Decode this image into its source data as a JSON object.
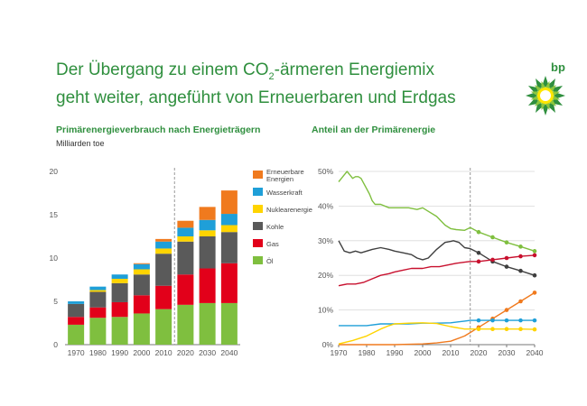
{
  "headline": {
    "line1_pre": "Der Übergang zu einem CO",
    "line1_sub": "2",
    "line1_post": "-ärmeren Energiemix",
    "line2": "geht weiter, angeführt von Erneuerbaren und Erdgas"
  },
  "logo": {
    "text": "bp"
  },
  "colors": {
    "accent": "#2f8f3e",
    "oil": "#7fbf3f",
    "gas": "#e2001a",
    "coal": "#5a5a5a",
    "nuclear": "#ffd400",
    "hydro": "#1f9fd8",
    "renew": "#f07a1e"
  },
  "chart_data": [
    {
      "type": "bar",
      "stacked": true,
      "title": "Primärenergieverbrauch nach Energieträgern",
      "ylabel": "Milliarden toe",
      "categories": [
        "1970",
        "1980",
        "1990",
        "2000",
        "2010",
        "2020",
        "2030",
        "2040"
      ],
      "ylim": [
        0,
        20
      ],
      "yticks": [
        0,
        5,
        10,
        15,
        20
      ],
      "projection_from": "2020",
      "series": [
        {
          "name": "Öl",
          "color": "#7fbf3f",
          "values": [
            2.3,
            3.1,
            3.2,
            3.6,
            4.1,
            4.6,
            4.8,
            4.8
          ]
        },
        {
          "name": "Gas",
          "color": "#e2001a",
          "values": [
            0.9,
            1.2,
            1.7,
            2.1,
            2.7,
            3.5,
            4.0,
            4.6
          ]
        },
        {
          "name": "Kohle",
          "color": "#5a5a5a",
          "values": [
            1.5,
            1.8,
            2.2,
            2.4,
            3.7,
            3.8,
            3.7,
            3.6
          ]
        },
        {
          "name": "Nuklearenergie",
          "color": "#ffd400",
          "values": [
            0.0,
            0.2,
            0.5,
            0.6,
            0.6,
            0.6,
            0.7,
            0.8
          ]
        },
        {
          "name": "Wasserkraft",
          "color": "#1f9fd8",
          "values": [
            0.3,
            0.4,
            0.5,
            0.6,
            0.8,
            1.0,
            1.2,
            1.3
          ]
        },
        {
          "name": "Erneuerbare Energien",
          "color": "#f07a1e",
          "values": [
            0.0,
            0.0,
            0.0,
            0.1,
            0.3,
            0.8,
            1.5,
            2.7
          ]
        }
      ],
      "legend_order": [
        "Erneuerbare Energien",
        "Wasserkraft",
        "Nuklearenergie",
        "Kohle",
        "Gas",
        "Öl"
      ],
      "legend_placement": "right"
    },
    {
      "type": "line",
      "title": "Anteil an der Primärenergie",
      "xlim": [
        1970,
        2040
      ],
      "xticks": [
        1970,
        1980,
        1990,
        2000,
        2010,
        2020,
        2030,
        2040
      ],
      "ylim": [
        0,
        50
      ],
      "yticks": [
        0,
        10,
        20,
        30,
        40,
        50
      ],
      "yunit": "%",
      "projection_from": 2017,
      "marker_years": [
        2020,
        2025,
        2030,
        2035,
        2040
      ],
      "series": [
        {
          "name": "Öl",
          "color": "#7fbf3f",
          "x": [
            1970,
            1971,
            1972,
            1973,
            1974,
            1975,
            1976,
            1977,
            1978,
            1979,
            1980,
            1981,
            1982,
            1983,
            1985,
            1988,
            1990,
            1995,
            1998,
            2000,
            2002,
            2005,
            2008,
            2010,
            2012,
            2015,
            2017,
            2020,
            2025,
            2030,
            2035,
            2040
          ],
          "values": [
            47,
            48,
            49,
            50,
            49,
            48,
            48.5,
            48.5,
            48,
            46.5,
            45,
            43.5,
            41.5,
            40.5,
            40.5,
            39.5,
            39.5,
            39.5,
            39,
            39.5,
            38.5,
            37,
            34.5,
            33.5,
            33.2,
            33,
            33.8,
            32.5,
            31,
            29.5,
            28.3,
            27
          ]
        },
        {
          "name": "Kohle",
          "color": "#3f3f3f",
          "x": [
            1970,
            1972,
            1974,
            1976,
            1978,
            1980,
            1982,
            1985,
            1988,
            1990,
            1993,
            1996,
            1998,
            2000,
            2002,
            2005,
            2008,
            2010,
            2011,
            2013,
            2015,
            2017,
            2020,
            2025,
            2030,
            2035,
            2040
          ],
          "values": [
            30,
            27,
            26.5,
            27,
            26.5,
            27,
            27.5,
            28,
            27.5,
            27,
            26.5,
            26,
            25,
            24.5,
            25,
            27.5,
            29.5,
            29.8,
            30,
            29.5,
            28,
            27.7,
            26.5,
            24,
            22.5,
            21.3,
            20
          ]
        },
        {
          "name": "Gas",
          "color": "#c8102e",
          "x": [
            1970,
            1973,
            1976,
            1979,
            1982,
            1985,
            1988,
            1990,
            1993,
            1996,
            2000,
            2003,
            2006,
            2009,
            2012,
            2015,
            2017,
            2020,
            2025,
            2030,
            2035,
            2040
          ],
          "values": [
            17,
            17.5,
            17.5,
            18,
            19,
            20,
            20.5,
            21,
            21.5,
            22,
            22,
            22.5,
            22.5,
            23,
            23.5,
            23.8,
            24,
            24,
            24.5,
            25,
            25.5,
            25.8
          ]
        },
        {
          "name": "Erneuerbare Energien",
          "color": "#f07a1e",
          "x": [
            1970,
            1980,
            1990,
            2000,
            2005,
            2010,
            2015,
            2017,
            2020,
            2025,
            2030,
            2035,
            2040
          ],
          "values": [
            0,
            0,
            0,
            0.2,
            0.5,
            1,
            2.5,
            3.5,
            5,
            7.5,
            10,
            12.5,
            15
          ]
        },
        {
          "name": "Wasserkraft",
          "color": "#1f9fd8",
          "x": [
            1970,
            1975,
            1980,
            1985,
            1990,
            1995,
            2000,
            2005,
            2010,
            2015,
            2017,
            2020,
            2025,
            2030,
            2035,
            2040
          ],
          "values": [
            5.5,
            5.5,
            5.5,
            6,
            6,
            6,
            6.2,
            6.2,
            6.3,
            6.8,
            7,
            7,
            7,
            7,
            7,
            7
          ]
        },
        {
          "name": "Nuklearenergie",
          "color": "#ffd400",
          "x": [
            1970,
            1975,
            1980,
            1985,
            1988,
            1990,
            1995,
            2000,
            2005,
            2010,
            2015,
            2017,
            2020,
            2025,
            2030,
            2035,
            2040
          ],
          "values": [
            0.2,
            1.2,
            2.5,
            4.5,
            5.5,
            6,
            6.2,
            6.3,
            6.1,
            5.2,
            4.5,
            4.5,
            4.5,
            4.5,
            4.5,
            4.5,
            4.4
          ]
        }
      ]
    }
  ]
}
